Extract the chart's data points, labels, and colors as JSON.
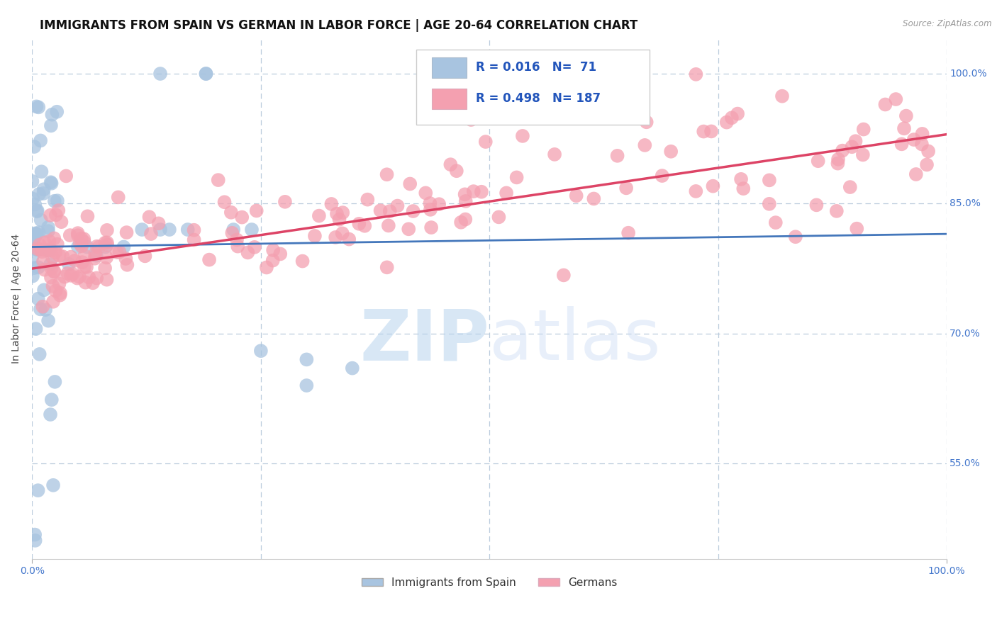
{
  "title": "IMMIGRANTS FROM SPAIN VS GERMAN IN LABOR FORCE | AGE 20-64 CORRELATION CHART",
  "source": "Source: ZipAtlas.com",
  "ylabel": "In Labor Force | Age 20-64",
  "xlim": [
    0.0,
    1.0
  ],
  "ylim": [
    0.44,
    1.04
  ],
  "yticks": [
    0.55,
    0.7,
    0.85,
    1.0
  ],
  "ytick_labels": [
    "55.0%",
    "70.0%",
    "85.0%",
    "100.0%"
  ],
  "xtick_labels": [
    "0.0%",
    "100.0%"
  ],
  "xticks": [
    0.0,
    1.0
  ],
  "legend_r_spain": "0.016",
  "legend_n_spain": "71",
  "legend_r_german": "0.498",
  "legend_n_german": "187",
  "color_spain": "#a8c4e0",
  "color_german": "#f4a0b0",
  "trendline_spain_color": "#4477bb",
  "trendline_german_color": "#dd4466",
  "background_color": "#ffffff",
  "grid_color": "#bbccdd",
  "title_fontsize": 12,
  "axis_label_fontsize": 10,
  "tick_label_fontsize": 10,
  "tick_label_color": "#4477cc",
  "trendline_spain_start_y": 0.8,
  "trendline_spain_end_y": 0.815,
  "trendline_german_start_y": 0.775,
  "trendline_german_end_y": 0.93
}
